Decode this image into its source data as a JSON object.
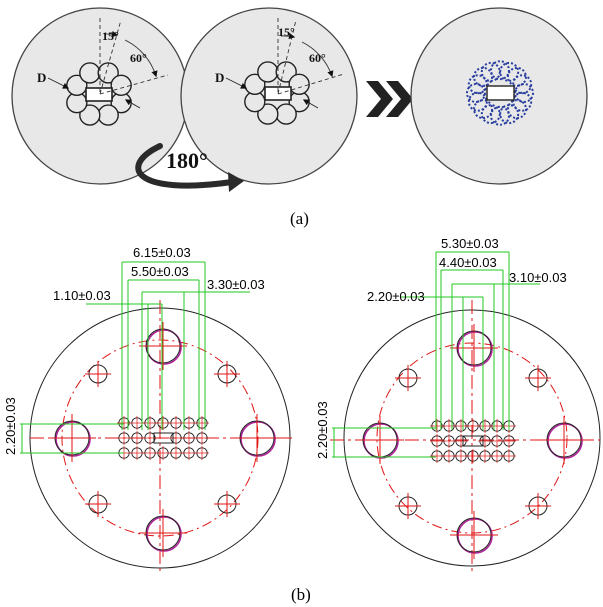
{
  "panel_a": {
    "caption": "(a)",
    "angle_15": "15°",
    "angle_60": "60°",
    "label_d": "D",
    "rotation": "180°"
  },
  "panel_b": {
    "caption": "(b)",
    "left": {
      "dim_outer": "6.15±0.03",
      "dim_mid": "5.50±0.03",
      "dim_right": "3.30±0.03",
      "dim_left": "1.10±0.03",
      "dim_vertical": "2.20±0.03"
    },
    "right": {
      "dim_outer": "5.30±0.03",
      "dim_mid": "4.40±0.03",
      "dim_right": "3.10±0.03",
      "dim_left": "2.20±0.03",
      "dim_vertical": "2.20±0.03"
    }
  },
  "colors": {
    "disc_fill": "#e8e8e8",
    "dimension_green": "#22c922",
    "centerline_red": "#e01515",
    "hole_magenta": "#b0239a",
    "dotted_blue": "#2a3fa0"
  }
}
